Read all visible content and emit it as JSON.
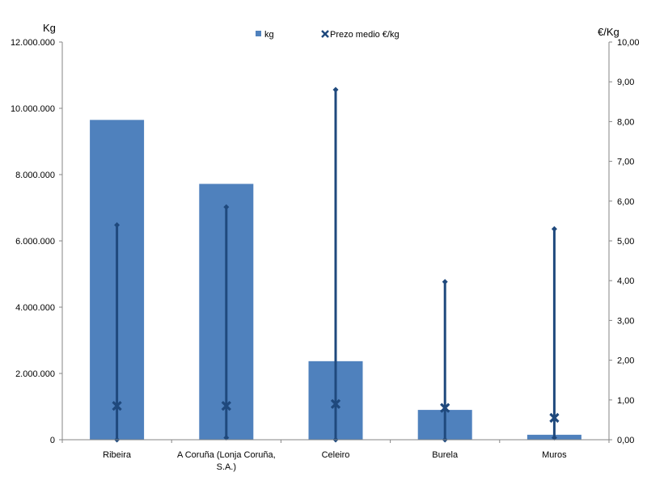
{
  "chart_data": {
    "type": "bar",
    "categories": [
      [
        "Ribeira"
      ],
      [
        "A Coruña (Lonja Coruña,",
        "S.A.)"
      ],
      [
        "Celeiro"
      ],
      [
        "Burela"
      ],
      [
        "Muros"
      ]
    ],
    "left_axis": {
      "unit": "Kg",
      "ylim": [
        0,
        12000000
      ],
      "ticks": [
        "0",
        "2.000.000",
        "4.000.000",
        "6.000.000",
        "8.000.000",
        "10.000.000",
        "12.000.000"
      ]
    },
    "right_axis": {
      "unit": "€/Kg",
      "ylim": [
        0,
        10
      ],
      "ticks": [
        "0,00",
        "1,00",
        "2,00",
        "3,00",
        "4,00",
        "5,00",
        "6,00",
        "7,00",
        "8,00",
        "9,00",
        "10,00"
      ]
    },
    "series": [
      {
        "name": "kg",
        "type": "bar",
        "axis": "left",
        "values": [
          9650000,
          7720000,
          2370000,
          900000,
          150000
        ]
      },
      {
        "name": "Prezo medio €/kg",
        "type": "marker",
        "axis": "right",
        "values": [
          0.85,
          0.85,
          0.9,
          0.8,
          0.55
        ],
        "min": [
          0.0,
          0.05,
          0.0,
          0.0,
          0.05
        ],
        "max": [
          5.4,
          5.85,
          8.8,
          3.97,
          5.3
        ]
      }
    ],
    "legend_position": "top",
    "grid": false,
    "colors": {
      "bar": "#4f81bd",
      "line": "#1f497d"
    }
  }
}
